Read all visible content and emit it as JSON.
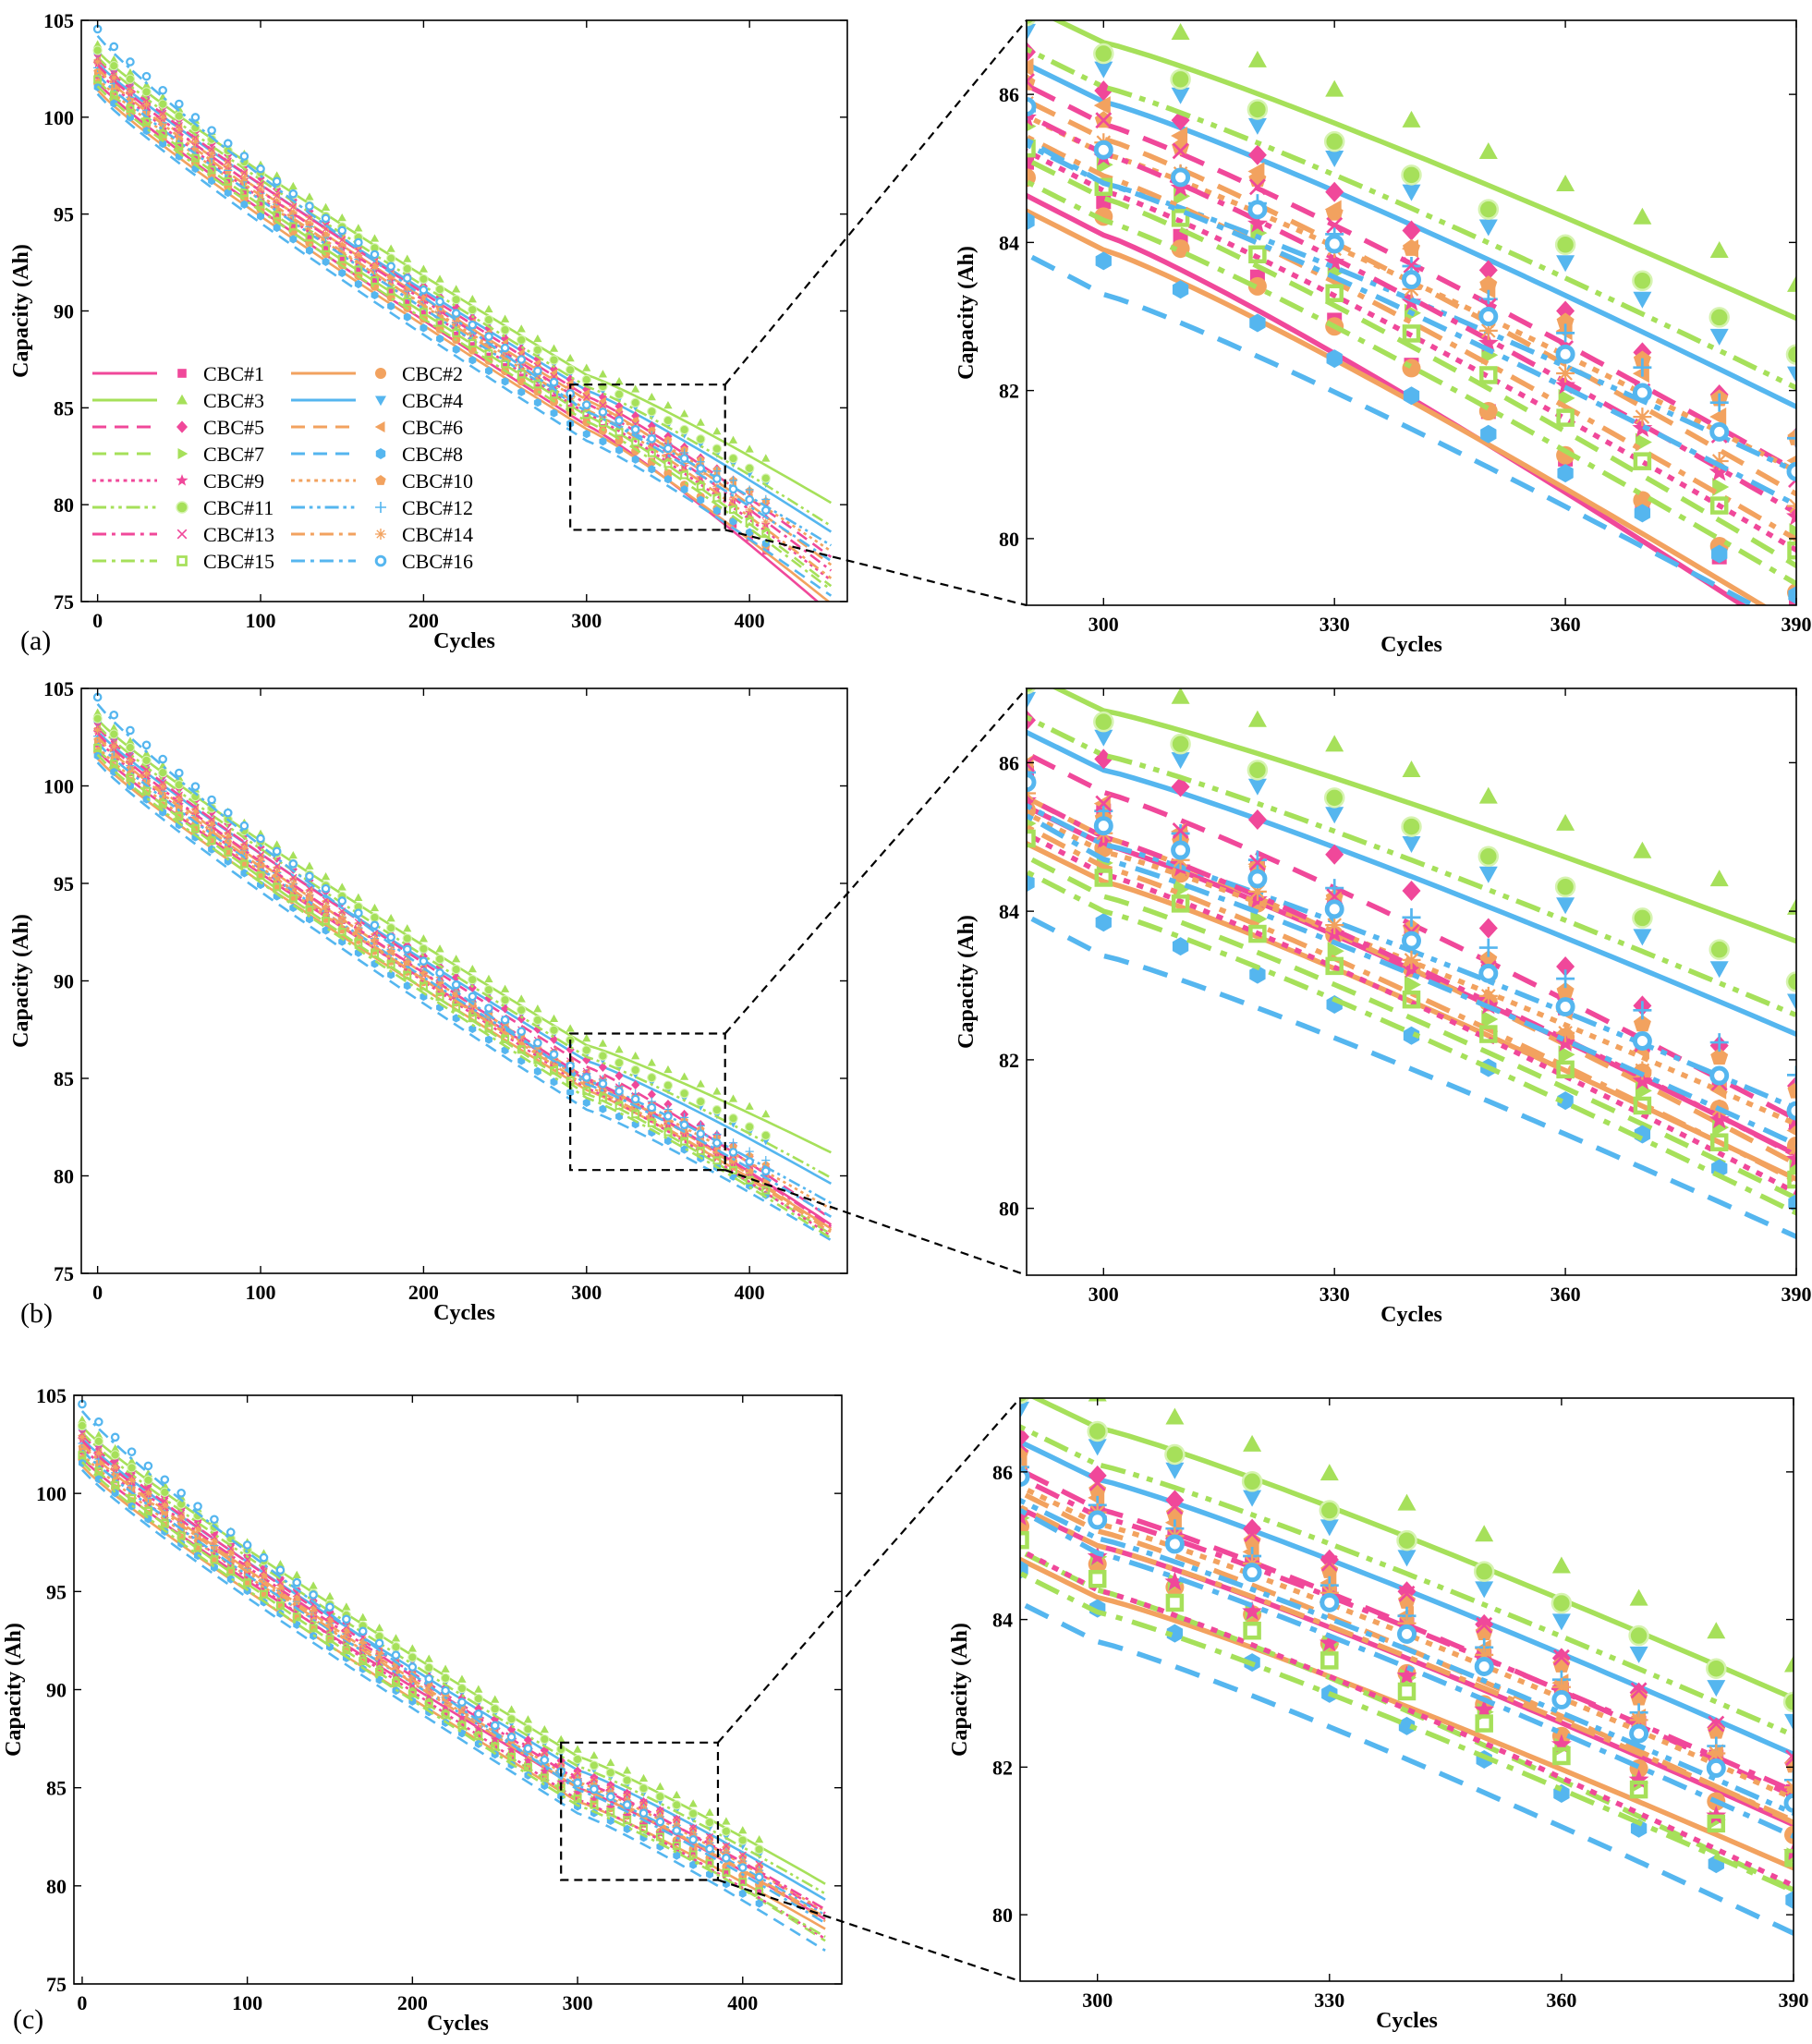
{
  "figure": {
    "series_names": [
      "CBC#1",
      "CBC#2",
      "CBC#3",
      "CBC#4",
      "CBC#5",
      "CBC#6",
      "CBC#7",
      "CBC#8",
      "CBC#9",
      "CBC#10",
      "CBC#11",
      "CBC#12",
      "CBC#13",
      "CBC#14",
      "CBC#15",
      "CBC#16"
    ],
    "series_colors": {
      "pink": "#f0489a",
      "orange": "#f2a25f",
      "green": "#a6e05a",
      "blue": "#55b6ef"
    },
    "series_styles": [
      "pink-solid",
      "orange-solid",
      "green-solid",
      "blue-solid",
      "pink-dash",
      "orange-dash",
      "green-dash",
      "blue-dash",
      "pink-dot",
      "orange-dot",
      "green-dashdotdot",
      "blue-dashdotdot",
      "pink-dashdot",
      "orange-dashdot",
      "green-dashdot",
      "blue-dashdot"
    ],
    "series_markers": [
      "square",
      "circle",
      "triangle-up",
      "triangle-down",
      "diamond",
      "triangle-left",
      "triangle-right",
      "hexagon",
      "star",
      "pentagon",
      "sphere",
      "plus",
      "x",
      "asterisk",
      "square-open",
      "circle-open"
    ]
  },
  "chart_data": [
    {
      "type": "line",
      "panel": "(a)",
      "view": "full",
      "title": "",
      "xlabel": "Cycles",
      "ylabel": "Capacity (Ah)",
      "xlim": [
        -10,
        460
      ],
      "ylim": [
        75,
        105
      ],
      "xticks": [
        "0",
        "100",
        "200",
        "300",
        "400"
      ],
      "yticks": [
        "75",
        "80",
        "85",
        "90",
        "95",
        "100",
        "105"
      ],
      "legend": {
        "position": "lower-left",
        "columns": 2
      },
      "marker_x": [
        0,
        10,
        20,
        30,
        40,
        50,
        60,
        70,
        80,
        90,
        100,
        110,
        120,
        130,
        140,
        150,
        160,
        170,
        180,
        190,
        200,
        210,
        220,
        230,
        240,
        250,
        260,
        270,
        280,
        290,
        300,
        310,
        320,
        330,
        340,
        350,
        360,
        370,
        380,
        390,
        400,
        410
      ],
      "series": [
        {
          "name": "CBC#1",
          "start": 101.8,
          "at300": 84.1,
          "end450": 74.4
        },
        {
          "name": "CBC#2",
          "start": 101.4,
          "at300": 83.9,
          "end450": 74.9
        },
        {
          "name": "CBC#3",
          "start": 103.4,
          "at300": 86.7,
          "end450": 80.1
        },
        {
          "name": "CBC#4",
          "start": 102.8,
          "at300": 85.9,
          "end450": 78.6
        },
        {
          "name": "CBC#5",
          "start": 103.0,
          "at300": 85.6,
          "end450": 77.3
        },
        {
          "name": "CBC#6",
          "start": 102.6,
          "at300": 85.4,
          "end450": 76.9
        },
        {
          "name": "CBC#7",
          "start": 101.9,
          "at300": 84.6,
          "end450": 75.8
        },
        {
          "name": "CBC#8",
          "start": 101.2,
          "at300": 83.3,
          "end450": 75.3
        },
        {
          "name": "CBC#9",
          "start": 102.4,
          "at300": 84.7,
          "end450": 76.1
        },
        {
          "name": "CBC#10",
          "start": 102.0,
          "at300": 85.2,
          "end450": 77.6
        },
        {
          "name": "CBC#11",
          "start": 103.1,
          "at300": 86.1,
          "end450": 78.9
        },
        {
          "name": "CBC#12",
          "start": 102.2,
          "at300": 84.8,
          "end450": 77.9
        },
        {
          "name": "CBC#13",
          "start": 102.7,
          "at300": 85.2,
          "end450": 76.6
        },
        {
          "name": "CBC#14",
          "start": 102.5,
          "at300": 84.9,
          "end450": 76.2
        },
        {
          "name": "CBC#15",
          "start": 101.6,
          "at300": 84.3,
          "end450": 75.6
        },
        {
          "name": "CBC#16",
          "start": 104.2,
          "at300": 84.8,
          "end450": 77.1
        }
      ],
      "zoom_box": {
        "x": [
          290,
          385
        ],
        "y": [
          78.7,
          86.2
        ]
      }
    },
    {
      "type": "line",
      "panel": "(a)",
      "view": "zoom",
      "xlabel": "Cycles",
      "ylabel": "Capacity (Ah)",
      "xlim": [
        290,
        390
      ],
      "ylim": [
        79.1,
        87.0
      ],
      "xticks": [
        "300",
        "330",
        "360",
        "390"
      ],
      "yticks": [
        "80",
        "82",
        "84",
        "86"
      ],
      "marker_x": [
        290,
        300,
        310,
        320,
        330,
        340,
        350,
        360,
        370,
        380,
        390
      ]
    },
    {
      "type": "line",
      "panel": "(b)",
      "view": "full",
      "xlabel": "Cycles",
      "ylabel": "Capacity (Ah)",
      "xlim": [
        -10,
        460
      ],
      "ylim": [
        75,
        105
      ],
      "xticks": [
        "0",
        "100",
        "200",
        "300",
        "400"
      ],
      "yticks": [
        "75",
        "80",
        "85",
        "90",
        "95",
        "100",
        "105"
      ],
      "series": [
        {
          "name": "CBC#1",
          "start": 101.8,
          "at300": 84.9,
          "end450": 77.5
        },
        {
          "name": "CBC#2",
          "start": 101.4,
          "at300": 84.4,
          "end450": 77.3
        },
        {
          "name": "CBC#3",
          "start": 103.4,
          "at300": 86.7,
          "end450": 81.2
        },
        {
          "name": "CBC#4",
          "start": 102.8,
          "at300": 85.9,
          "end450": 79.6
        },
        {
          "name": "CBC#5",
          "start": 103.0,
          "at300": 85.6,
          "end450": 77.8
        },
        {
          "name": "CBC#6",
          "start": 102.6,
          "at300": 85.0,
          "end450": 77.2
        },
        {
          "name": "CBC#7",
          "start": 101.9,
          "at300": 84.2,
          "end450": 77.0
        },
        {
          "name": "CBC#8",
          "start": 101.2,
          "at300": 83.4,
          "end450": 76.7
        },
        {
          "name": "CBC#9",
          "start": 102.4,
          "at300": 84.5,
          "end450": 76.9
        },
        {
          "name": "CBC#10",
          "start": 102.0,
          "at300": 84.8,
          "end450": 78.3
        },
        {
          "name": "CBC#11",
          "start": 103.1,
          "at300": 86.1,
          "end450": 79.9
        },
        {
          "name": "CBC#12",
          "start": 102.2,
          "at300": 84.9,
          "end450": 78.6
        },
        {
          "name": "CBC#13",
          "start": 102.7,
          "at300": 85.0,
          "end450": 77.4
        },
        {
          "name": "CBC#14",
          "start": 102.5,
          "at300": 84.6,
          "end450": 77.1
        },
        {
          "name": "CBC#15",
          "start": 101.6,
          "at300": 84.0,
          "end450": 76.8
        },
        {
          "name": "CBC#16",
          "start": 104.2,
          "at300": 84.7,
          "end450": 77.9
        }
      ],
      "zoom_box": {
        "x": [
          290,
          385
        ],
        "y": [
          80.3,
          87.3
        ]
      }
    },
    {
      "type": "line",
      "panel": "(b)",
      "view": "zoom",
      "xlabel": "Cycles",
      "ylabel": "Capacity (Ah)",
      "xlim": [
        290,
        390
      ],
      "ylim": [
        79.1,
        87.0
      ],
      "xticks": [
        "300",
        "330",
        "360",
        "390"
      ],
      "yticks": [
        "80",
        "82",
        "84",
        "86"
      ]
    },
    {
      "type": "line",
      "panel": "(c)",
      "view": "full",
      "xlabel": "Cycles",
      "ylabel": "Capacity (Ah)",
      "xlim": [
        -5,
        460
      ],
      "ylim": [
        75,
        105
      ],
      "xticks": [
        "0",
        "100",
        "200",
        "300",
        "400"
      ],
      "yticks": [
        "75",
        "80",
        "85",
        "90",
        "95",
        "100",
        "105"
      ],
      "series": [
        {
          "name": "CBC#1",
          "start": 101.8,
          "at300": 85.0,
          "end450": 78.3
        },
        {
          "name": "CBC#2",
          "start": 101.4,
          "at300": 84.3,
          "end450": 77.8
        },
        {
          "name": "CBC#3",
          "start": 103.4,
          "at300": 86.6,
          "end450": 80.1
        },
        {
          "name": "CBC#4",
          "start": 102.8,
          "at300": 85.9,
          "end450": 79.3
        },
        {
          "name": "CBC#5",
          "start": 103.0,
          "at300": 85.5,
          "end450": 78.6
        },
        {
          "name": "CBC#6",
          "start": 102.6,
          "at300": 85.2,
          "end450": 78.2
        },
        {
          "name": "CBC#7",
          "start": 101.9,
          "at300": 84.4,
          "end450": 77.2
        },
        {
          "name": "CBC#8",
          "start": 101.2,
          "at300": 83.7,
          "end450": 76.7
        },
        {
          "name": "CBC#9",
          "start": 102.4,
          "at300": 84.4,
          "end450": 77.3
        },
        {
          "name": "CBC#10",
          "start": 102.0,
          "at300": 85.3,
          "end450": 78.7
        },
        {
          "name": "CBC#11",
          "start": 103.1,
          "at300": 86.1,
          "end450": 79.6
        },
        {
          "name": "CBC#12",
          "start": 102.2,
          "at300": 85.1,
          "end450": 78.5
        },
        {
          "name": "CBC#13",
          "start": 102.7,
          "at300": 85.4,
          "end450": 78.8
        },
        {
          "name": "CBC#14",
          "start": 102.5,
          "at300": 85.0,
          "end450": 78.4
        },
        {
          "name": "CBC#15",
          "start": 101.6,
          "at300": 84.1,
          "end450": 77.4
        },
        {
          "name": "CBC#16",
          "start": 104.2,
          "at300": 84.9,
          "end450": 78.1
        }
      ],
      "zoom_box": {
        "x": [
          290,
          385
        ],
        "y": [
          80.3,
          87.3
        ]
      }
    },
    {
      "type": "line",
      "panel": "(c)",
      "view": "zoom",
      "xlabel": "Cycles",
      "ylabel": "Capacity (Ah)",
      "xlim": [
        290,
        390
      ],
      "ylim": [
        79.1,
        87.0
      ],
      "xticks": [
        "300",
        "330",
        "360",
        "390"
      ],
      "yticks": [
        "80",
        "82",
        "84",
        "86"
      ]
    }
  ]
}
